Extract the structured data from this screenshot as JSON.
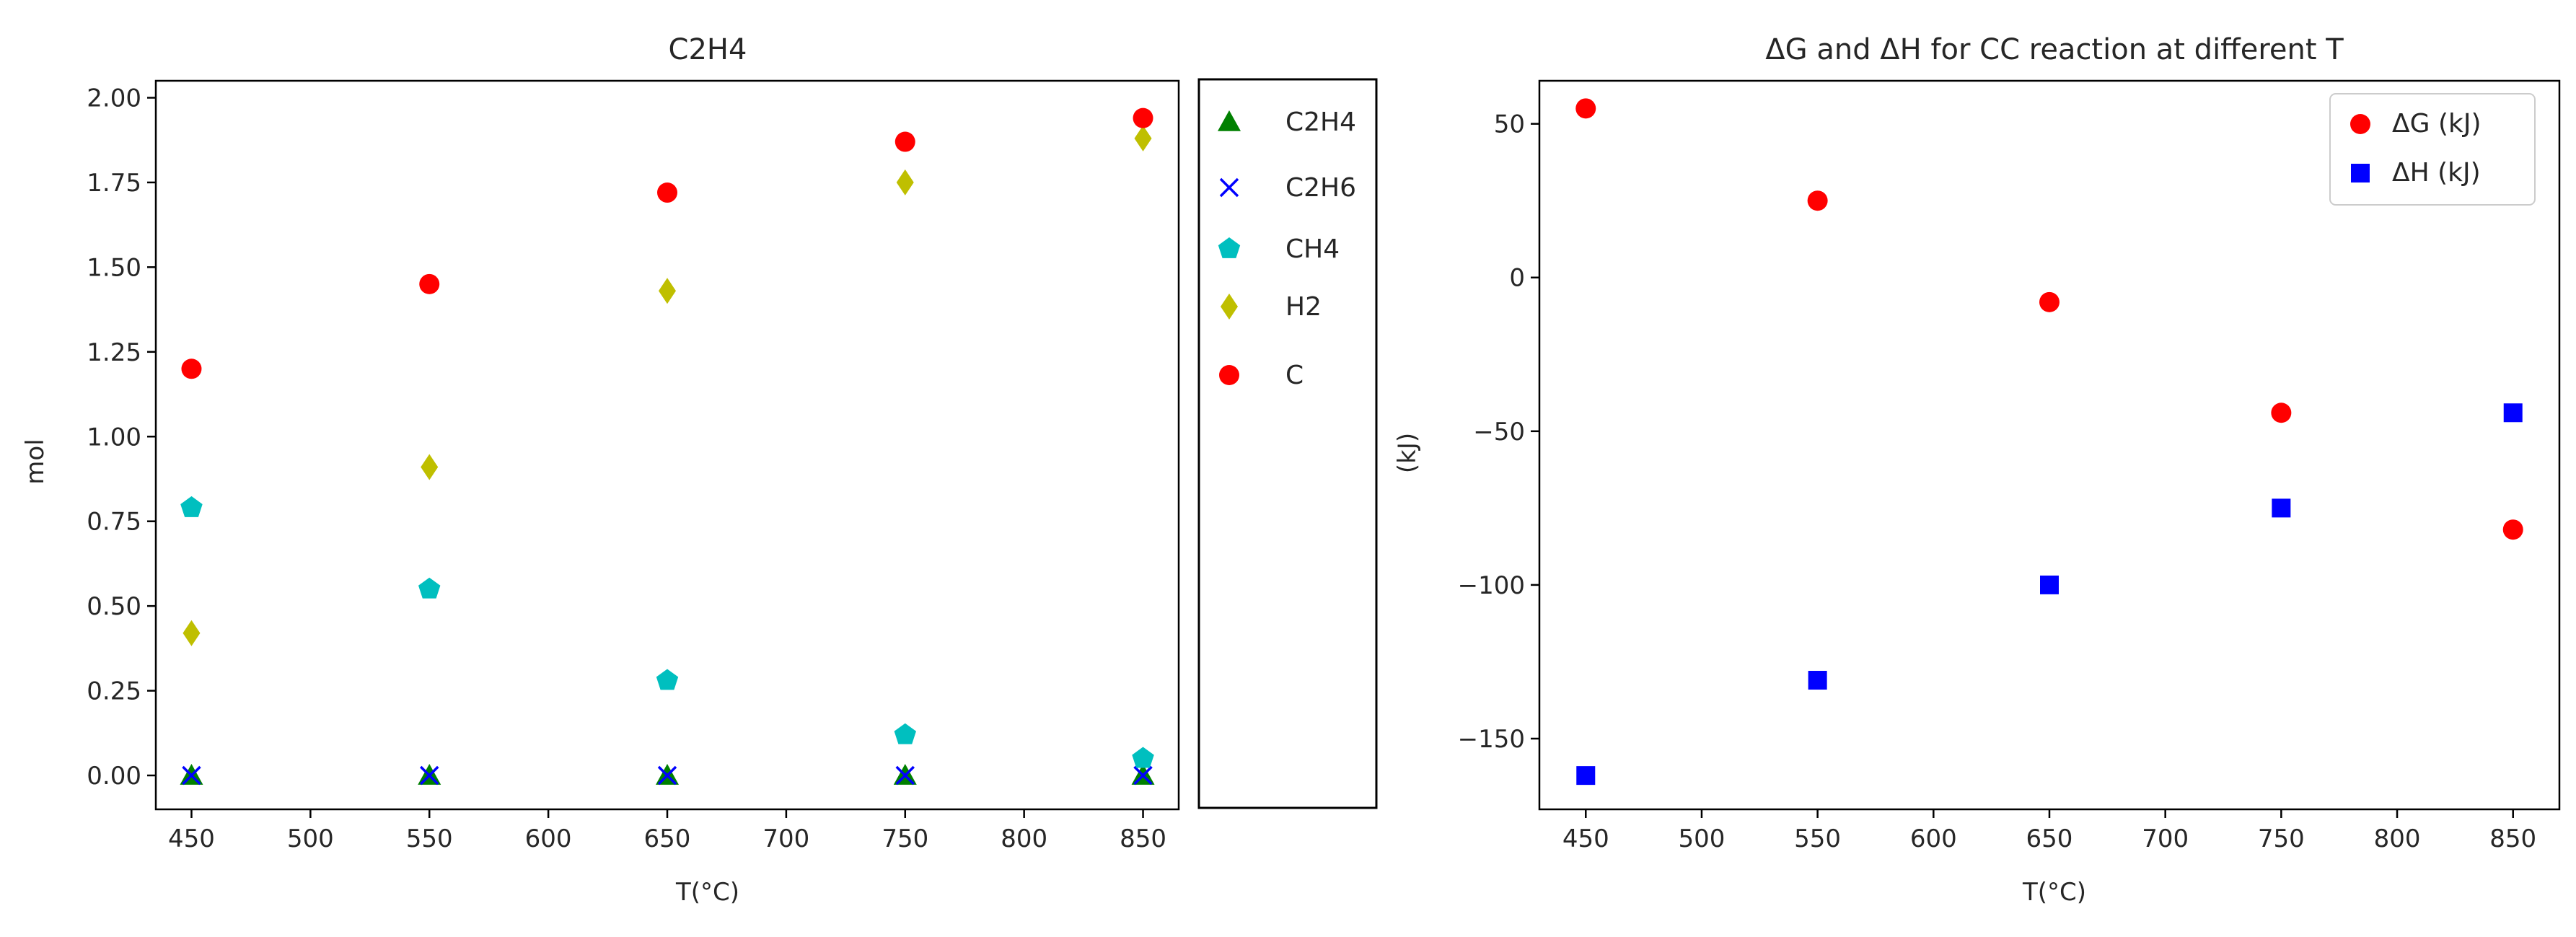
{
  "chart_data": [
    {
      "type": "scatter",
      "title": "C2H4",
      "xlabel": "T(°C)",
      "ylabel": "mol",
      "xlim": [
        435,
        865
      ],
      "ylim": [
        -0.1,
        2.05
      ],
      "xticks": [
        450,
        500,
        550,
        600,
        650,
        700,
        750,
        800,
        850
      ],
      "xtick_labels": [
        "450",
        "500",
        "550",
        "600",
        "650",
        "700",
        "750",
        "800",
        "850"
      ],
      "yticks": [
        0,
        0.25,
        0.5,
        0.75,
        1.0,
        1.25,
        1.5,
        1.75,
        2.0
      ],
      "ytick_labels": [
        "0.00",
        "0.25",
        "0.50",
        "0.75",
        "1.00",
        "1.25",
        "1.50",
        "1.75",
        "2.00"
      ],
      "legend_position": "outside-right",
      "x": [
        450,
        550,
        650,
        750,
        850
      ],
      "series": [
        {
          "name": "C2H4",
          "label": "C2H4",
          "marker": "triangle",
          "color": "#008000",
          "values": [
            0,
            0,
            0,
            0,
            0
          ]
        },
        {
          "name": "C2H6",
          "label": "C2H6",
          "marker": "x",
          "color": "#0000ff",
          "values": [
            0,
            0,
            0,
            0,
            0
          ]
        },
        {
          "name": "CH4",
          "label": "CH4",
          "marker": "pentagon",
          "color": "#00bfbf",
          "values": [
            0.79,
            0.55,
            0.28,
            0.12,
            0.05
          ]
        },
        {
          "name": "H2",
          "label": "H2",
          "marker": "diamond",
          "color": "#bfbf00",
          "values": [
            0.42,
            0.91,
            1.43,
            1.75,
            1.88
          ]
        },
        {
          "name": "C",
          "label": "C",
          "marker": "circle",
          "color": "#ff0000",
          "values": [
            1.2,
            1.45,
            1.72,
            1.87,
            1.94
          ]
        }
      ]
    },
    {
      "type": "scatter",
      "title": "ΔG and ΔH for CC reaction at different T",
      "xlabel": "T(°C)",
      "ylabel": "(kJ)",
      "xlim": [
        430,
        870
      ],
      "ylim": [
        -173,
        64
      ],
      "xticks": [
        450,
        500,
        550,
        600,
        650,
        700,
        750,
        800,
        850
      ],
      "xtick_labels": [
        "450",
        "500",
        "550",
        "600",
        "650",
        "700",
        "750",
        "800",
        "850"
      ],
      "yticks": [
        -150,
        -100,
        -50,
        0,
        50
      ],
      "ytick_labels": [
        "−150",
        "−100",
        "−50",
        "0",
        "50"
      ],
      "legend_position": "top-right",
      "x": [
        450,
        550,
        650,
        750,
        850
      ],
      "series": [
        {
          "name": "ΔG",
          "label": "ΔG (kJ)",
          "marker": "circle",
          "color": "#ff0000",
          "values": [
            55,
            25,
            -8,
            -44,
            -82
          ]
        },
        {
          "name": "ΔH",
          "label": "ΔH (kJ)",
          "marker": "square",
          "color": "#0000ff",
          "values": [
            -162,
            -131,
            -100,
            -75,
            -44
          ]
        }
      ]
    }
  ]
}
